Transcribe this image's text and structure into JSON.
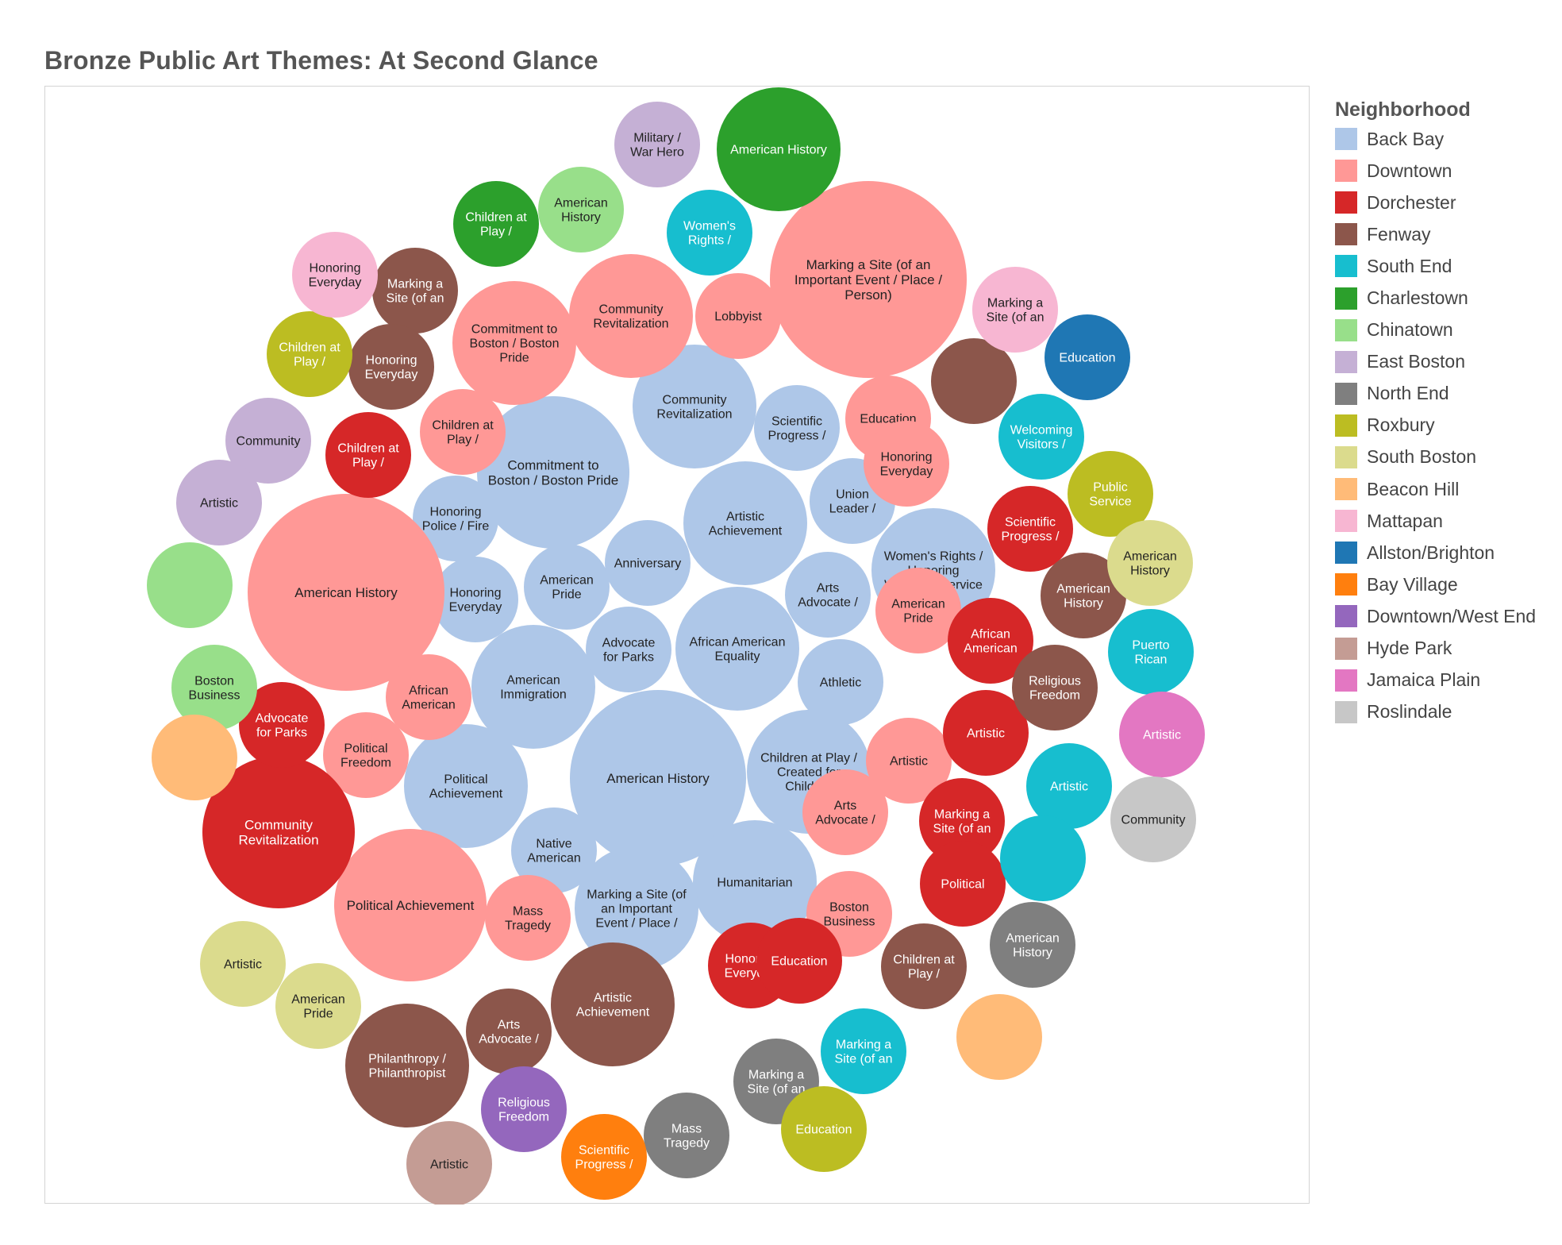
{
  "chart_data": {
    "type": "packed-bubble",
    "title": "Bronze Public Art Themes: At Second Glance",
    "legend_title": "Neighborhood",
    "legend": [
      {
        "name": "Back Bay",
        "color": "#aec7e8"
      },
      {
        "name": "Downtown",
        "color": "#ff9896"
      },
      {
        "name": "Dorchester",
        "color": "#d62728"
      },
      {
        "name": "Fenway",
        "color": "#8c564b"
      },
      {
        "name": "South End",
        "color": "#17becf"
      },
      {
        "name": "Charlestown",
        "color": "#2ca02c"
      },
      {
        "name": "Chinatown",
        "color": "#98df8a"
      },
      {
        "name": "East Boston",
        "color": "#c5b0d5"
      },
      {
        "name": "North End",
        "color": "#7f7f7f"
      },
      {
        "name": "Roxbury",
        "color": "#bcbd22"
      },
      {
        "name": "South Boston",
        "color": "#dbdb8d"
      },
      {
        "name": "Beacon Hill",
        "color": "#ffbb78"
      },
      {
        "name": "Mattapan",
        "color": "#f7b6d2"
      },
      {
        "name": "Allston/Brighton",
        "color": "#1f77b4"
      },
      {
        "name": "Bay Village",
        "color": "#ff7f0e"
      },
      {
        "name": "Downtown/West End",
        "color": "#9467bd"
      },
      {
        "name": "Hyde Park",
        "color": "#c49c94"
      },
      {
        "name": "Jamaica Plain",
        "color": "#e377c2"
      },
      {
        "name": "Roslindale",
        "color": "#c7c7c7"
      }
    ],
    "bubbles": [
      {
        "label": "American History",
        "lines": [
          "American History"
        ],
        "neighborhood": "Back Bay",
        "value": 7
      },
      {
        "label": "Commitment to Boston / Boston Pride",
        "lines": [
          "Commitment to",
          "Boston / Boston Pride"
        ],
        "neighborhood": "Back Bay",
        "value": 5
      },
      {
        "label": "Community Revitalization",
        "lines": [
          "Community",
          "Revitalization"
        ],
        "neighborhood": "Back Bay",
        "value": 3.5
      },
      {
        "label": "Artistic Achievement",
        "lines": [
          "Artistic",
          "Achievement"
        ],
        "neighborhood": "Back Bay",
        "value": 3.5
      },
      {
        "label": "African American Equality",
        "lines": [
          "African American",
          "Equality"
        ],
        "neighborhood": "Back Bay",
        "value": 3.5
      },
      {
        "label": "American Immigration",
        "lines": [
          "American",
          "Immigration"
        ],
        "neighborhood": "Back Bay",
        "value": 3.5
      },
      {
        "label": "Political Achievement",
        "lines": [
          "Political",
          "Achievement"
        ],
        "neighborhood": "Back Bay",
        "value": 3.5
      },
      {
        "label": "Children at Play / Created for Children",
        "lines": [
          "Children at Play /",
          "Created for",
          "Children"
        ],
        "neighborhood": "Back Bay",
        "value": 3.5
      },
      {
        "label": "Humanitarian",
        "lines": [
          "Humanitarian"
        ],
        "neighborhood": "Back Bay",
        "value": 3.5
      },
      {
        "label": "Marking a Site (of an Important Event / Place /",
        "lines": [
          "Marking a Site (of",
          "an Important",
          "Event / Place /"
        ],
        "neighborhood": "Back Bay",
        "value": 3.5
      },
      {
        "label": "Women's Rights / Honoring Women's Service",
        "lines": [
          "Women's Rights /",
          "Honoring",
          "Women's Service"
        ],
        "neighborhood": "Back Bay",
        "value": 3.5
      },
      {
        "label": "Scientific Progress /",
        "lines": [
          "Scientific",
          "Progress  /"
        ],
        "neighborhood": "Back Bay",
        "value": 1.7
      },
      {
        "label": "Union Leader /",
        "lines": [
          "Union",
          "Leader /"
        ],
        "neighborhood": "Back Bay",
        "value": 1.7
      },
      {
        "label": "Honoring Police / Fire",
        "lines": [
          "Honoring",
          "Police / Fire"
        ],
        "neighborhood": "Back Bay",
        "value": 1.7
      },
      {
        "label": "Honoring Everyday",
        "lines": [
          "Honoring",
          "Everyday"
        ],
        "neighborhood": "Back Bay",
        "value": 1.7
      },
      {
        "label": "American Pride",
        "lines": [
          "American",
          "Pride"
        ],
        "neighborhood": "Back Bay",
        "value": 1.7
      },
      {
        "label": "Anniversary",
        "lines": [
          "Anniversary"
        ],
        "neighborhood": "Back Bay",
        "value": 1.7
      },
      {
        "label": "Advocate for Parks",
        "lines": [
          "Advocate",
          "for Parks"
        ],
        "neighborhood": "Back Bay",
        "value": 1.7
      },
      {
        "label": "Arts Advocate /",
        "lines": [
          "Arts",
          "Advocate /"
        ],
        "neighborhood": "Back Bay",
        "value": 1.7
      },
      {
        "label": "Athletic",
        "lines": [
          "Athletic"
        ],
        "neighborhood": "Back Bay",
        "value": 1.7
      },
      {
        "label": "Native American",
        "lines": [
          "Native",
          "American"
        ],
        "neighborhood": "Back Bay",
        "value": 1.7
      },
      {
        "label": "Marking a Site (of an Important Event / Place / Person)",
        "lines": [
          "Marking a Site (of an",
          "Important Event / Place /",
          "Person)"
        ],
        "neighborhood": "Downtown",
        "value": 9
      },
      {
        "label": "American History",
        "lines": [
          "American History"
        ],
        "neighborhood": "Downtown",
        "value": 9
      },
      {
        "label": "Political Achievement",
        "lines": [
          "Political Achievement"
        ],
        "neighborhood": "Downtown",
        "value": 4.5
      },
      {
        "label": "Community Revitalization",
        "lines": [
          "Community",
          "Revitalization"
        ],
        "neighborhood": "Downtown",
        "value": 3.5
      },
      {
        "label": "Commitment to Boston / Boston Pride",
        "lines": [
          "Commitment to",
          "Boston / Boston",
          "Pride"
        ],
        "neighborhood": "Downtown",
        "value": 3.5
      },
      {
        "label": "Lobbyist",
        "lines": [
          "Lobbyist"
        ],
        "neighborhood": "Downtown",
        "value": 1.7
      },
      {
        "label": "Education",
        "lines": [
          "Education"
        ],
        "neighborhood": "Downtown",
        "value": 1.7
      },
      {
        "label": "Honoring Everyday",
        "lines": [
          "Honoring",
          "Everyday"
        ],
        "neighborhood": "Downtown",
        "value": 1.7
      },
      {
        "label": "Children at Play /",
        "lines": [
          "Children at",
          "Play /"
        ],
        "neighborhood": "Downtown",
        "value": 1.7
      },
      {
        "label": "African American",
        "lines": [
          "African",
          "American"
        ],
        "neighborhood": "Downtown",
        "value": 1.7
      },
      {
        "label": "Political Freedom",
        "lines": [
          "Political",
          "Freedom"
        ],
        "neighborhood": "Downtown",
        "value": 1.7
      },
      {
        "label": "American Pride",
        "lines": [
          "American",
          "Pride"
        ],
        "neighborhood": "Downtown",
        "value": 1.7
      },
      {
        "label": "Artistic",
        "lines": [
          "Artistic"
        ],
        "neighborhood": "Downtown",
        "value": 1.7
      },
      {
        "label": "Arts Advocate /",
        "lines": [
          "Arts",
          "Advocate /"
        ],
        "neighborhood": "Downtown",
        "value": 1.7
      },
      {
        "label": "Boston Business",
        "lines": [
          "Boston",
          "Business"
        ],
        "neighborhood": "Downtown",
        "value": 1.7
      },
      {
        "label": "Mass Tragedy",
        "lines": [
          "Mass",
          "Tragedy"
        ],
        "neighborhood": "Downtown",
        "value": 1.7
      },
      {
        "label": "Community Revitalization",
        "lines": [
          "Community",
          "Revitalization"
        ],
        "neighborhood": "Dorchester",
        "value": 5
      },
      {
        "label": "Children at Play /",
        "lines": [
          "Children at",
          "Play /"
        ],
        "neighborhood": "Dorchester",
        "value": 1.7
      },
      {
        "label": "Advocate for Parks",
        "lines": [
          "Advocate",
          "for Parks"
        ],
        "neighborhood": "Dorchester",
        "value": 1.7
      },
      {
        "label": "Scientific Progress /",
        "lines": [
          "Scientific",
          "Progress  /"
        ],
        "neighborhood": "Dorchester",
        "value": 1.7
      },
      {
        "label": "African American",
        "lines": [
          "African",
          "American"
        ],
        "neighborhood": "Dorchester",
        "value": 1.7
      },
      {
        "label": "Artistic",
        "lines": [
          "Artistic"
        ],
        "neighborhood": "Dorchester",
        "value": 1.7
      },
      {
        "label": "Marking a Site (of an",
        "lines": [
          "Marking a",
          "Site (of an"
        ],
        "neighborhood": "Dorchester",
        "value": 1.7
      },
      {
        "label": "Political",
        "lines": [
          "Political"
        ],
        "neighborhood": "Dorchester",
        "value": 1.7
      },
      {
        "label": "Honoring Everyday",
        "lines": [
          "Honoring",
          "Everyday"
        ],
        "neighborhood": "Dorchester",
        "value": 1.7
      },
      {
        "label": "Education",
        "lines": [
          "Education"
        ],
        "neighborhood": "Dorchester",
        "value": 1.7
      },
      {
        "label": "Marking a Site (of an",
        "lines": [
          "Marking a",
          "Site (of an"
        ],
        "neighborhood": "Fenway",
        "value": 1.7
      },
      {
        "label": "Honoring Everyday",
        "lines": [
          "Honoring",
          "Everyday"
        ],
        "neighborhood": "Fenway",
        "value": 1.7
      },
      {
        "label": "",
        "lines": [],
        "neighborhood": "Fenway",
        "value": 1.7
      },
      {
        "label": "American History",
        "lines": [
          "American",
          "History"
        ],
        "neighborhood": "Fenway",
        "value": 1.7
      },
      {
        "label": "Religious Freedom",
        "lines": [
          "Religious",
          "Freedom"
        ],
        "neighborhood": "Fenway",
        "value": 1.7
      },
      {
        "label": "Children at Play /",
        "lines": [
          "Children at",
          "Play /"
        ],
        "neighborhood": "Fenway",
        "value": 1.7
      },
      {
        "label": "Artistic Achievement",
        "lines": [
          "Artistic",
          "Achievement"
        ],
        "neighborhood": "Fenway",
        "value": 3.5
      },
      {
        "label": "Arts Advocate /",
        "lines": [
          "Arts",
          "Advocate /"
        ],
        "neighborhood": "Fenway",
        "value": 1.7
      },
      {
        "label": "Philanthropy / Philanthropist",
        "lines": [
          "Philanthropy /",
          "Philanthropist"
        ],
        "neighborhood": "Fenway",
        "value": 3.5
      },
      {
        "label": "Women's Rights /",
        "lines": [
          "Women's",
          "Rights /"
        ],
        "neighborhood": "South End",
        "value": 1.7
      },
      {
        "label": "Welcoming Visitors /",
        "lines": [
          "Welcoming",
          "Visitors /"
        ],
        "neighborhood": "South End",
        "value": 1.7
      },
      {
        "label": "Puerto Rican",
        "lines": [
          "Puerto",
          "Rican"
        ],
        "neighborhood": "South End",
        "value": 1.7
      },
      {
        "label": "Artistic",
        "lines": [
          "Artistic"
        ],
        "neighborhood": "South End",
        "value": 1.7
      },
      {
        "label": "",
        "lines": [],
        "neighborhood": "South End",
        "value": 1.7
      },
      {
        "label": "Marking a Site (of an",
        "lines": [
          "Marking a",
          "Site (of an"
        ],
        "neighborhood": "South End",
        "value": 1.7
      },
      {
        "label": "American History",
        "lines": [
          "American History"
        ],
        "neighborhood": "Charlestown",
        "value": 3.5
      },
      {
        "label": "Children at Play /",
        "lines": [
          "Children at",
          "Play /"
        ],
        "neighborhood": "Charlestown",
        "value": 1.7
      },
      {
        "label": "American History",
        "lines": [
          "American",
          "History"
        ],
        "neighborhood": "Chinatown",
        "value": 1.7
      },
      {
        "label": "",
        "lines": [],
        "neighborhood": "Chinatown",
        "value": 1.7
      },
      {
        "label": "Boston Business",
        "lines": [
          "Boston",
          "Business"
        ],
        "neighborhood": "Chinatown",
        "value": 1.7
      },
      {
        "label": "Military / War Hero",
        "lines": [
          "Military /",
          "War Hero"
        ],
        "neighborhood": "East Boston",
        "value": 1.7
      },
      {
        "label": "Community",
        "lines": [
          "Community"
        ],
        "neighborhood": "East Boston",
        "value": 1.7
      },
      {
        "label": "Artistic",
        "lines": [
          "Artistic"
        ],
        "neighborhood": "East Boston",
        "value": 1.7
      },
      {
        "label": "Marking a Site (of an",
        "lines": [
          "Marking a",
          "Site (of an"
        ],
        "neighborhood": "North End",
        "value": 1.7
      },
      {
        "label": "Mass Tragedy",
        "lines": [
          "Mass",
          "Tragedy"
        ],
        "neighborhood": "North End",
        "value": 1.7
      },
      {
        "label": "American History",
        "lines": [
          "American",
          "History"
        ],
        "neighborhood": "North End",
        "value": 1.7
      },
      {
        "label": "Children at Play /",
        "lines": [
          "Children at",
          "Play /"
        ],
        "neighborhood": "Roxbury",
        "value": 1.7
      },
      {
        "label": "Public Service",
        "lines": [
          "Public",
          "Service"
        ],
        "neighborhood": "Roxbury",
        "value": 1.7
      },
      {
        "label": "Education",
        "lines": [
          "Education"
        ],
        "neighborhood": "Roxbury",
        "value": 1.7
      },
      {
        "label": "American History",
        "lines": [
          "American",
          "History"
        ],
        "neighborhood": "South Boston",
        "value": 1.7
      },
      {
        "label": "Artistic",
        "lines": [
          "Artistic"
        ],
        "neighborhood": "South Boston",
        "value": 1.7
      },
      {
        "label": "American Pride",
        "lines": [
          "American",
          "Pride"
        ],
        "neighborhood": "South Boston",
        "value": 1.7
      },
      {
        "label": "",
        "lines": [],
        "neighborhood": "Beacon Hill",
        "value": 1.7
      },
      {
        "label": "",
        "lines": [],
        "neighborhood": "Beacon Hill",
        "value": 1.7
      },
      {
        "label": "Honoring Everyday",
        "lines": [
          "Honoring",
          "Everyday"
        ],
        "neighborhood": "Mattapan",
        "value": 1.7
      },
      {
        "label": "Marking a Site (of an",
        "lines": [
          "Marking a",
          "Site (of an"
        ],
        "neighborhood": "Mattapan",
        "value": 1.7
      },
      {
        "label": "Education",
        "lines": [
          "Education"
        ],
        "neighborhood": "Allston/Brighton",
        "value": 1.7
      },
      {
        "label": "Scientific Progress /",
        "lines": [
          "Scientific",
          "Progress  /"
        ],
        "neighborhood": "Bay Village",
        "value": 1.7
      },
      {
        "label": "Religious Freedom",
        "lines": [
          "Religious",
          "Freedom"
        ],
        "neighborhood": "Downtown/West End",
        "value": 1.7
      },
      {
        "label": "Artistic",
        "lines": [
          "Artistic"
        ],
        "neighborhood": "Hyde Park",
        "value": 1.7
      },
      {
        "label": "Artistic",
        "lines": [
          "Artistic"
        ],
        "neighborhood": "Jamaica Plain",
        "value": 1.7
      },
      {
        "label": "Community",
        "lines": [
          "Community"
        ],
        "neighborhood": "Roslindale",
        "value": 1.7
      }
    ]
  }
}
